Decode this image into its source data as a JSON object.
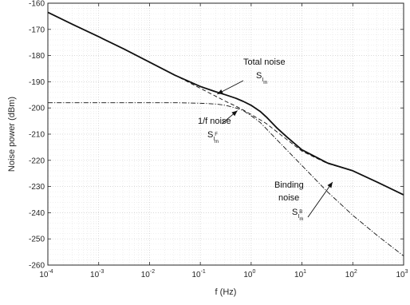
{
  "chart_data": {
    "type": "line",
    "xlabel": "f (Hz)",
    "ylabel": "Noise power (dBm)",
    "xscale": "log",
    "xlim": [
      0.0001,
      1000
    ],
    "ylim": [
      -260,
      -160
    ],
    "grid": true,
    "x_ticks": [
      {
        "base": "10",
        "exp": "-4",
        "value": 0.0001
      },
      {
        "base": "10",
        "exp": "-3",
        "value": 0.001
      },
      {
        "base": "10",
        "exp": "-2",
        "value": 0.01
      },
      {
        "base": "10",
        "exp": "-1",
        "value": 0.1
      },
      {
        "base": "10",
        "exp": "0",
        "value": 1
      },
      {
        "base": "10",
        "exp": "1",
        "value": 10
      },
      {
        "base": "10",
        "exp": "2",
        "value": 100
      },
      {
        "base": "10",
        "exp": "3",
        "value": 1000
      }
    ],
    "y_ticks": [
      "-160",
      "-170",
      "-180",
      "-190",
      "-200",
      "-210",
      "-220",
      "-230",
      "-240",
      "-250",
      "-260"
    ],
    "x": [
      0.0001,
      0.000316,
      0.001,
      0.00316,
      0.01,
      0.0316,
      0.1,
      0.2,
      0.316,
      0.5,
      0.7,
      1,
      1.5,
      2,
      3.16,
      5,
      10,
      31.6,
      100,
      316,
      1000
    ],
    "series": [
      {
        "style": "solid",
        "values": [
          -163.5,
          -168.2,
          -172.8,
          -177.5,
          -182.5,
          -187.5,
          -191.8,
          -193.8,
          -195.0,
          -196.3,
          -197.5,
          -199.0,
          -201.3,
          -203.5,
          -207.5,
          -211.0,
          -216.0,
          -221.0,
          -224.0,
          -228.5,
          -233.2
        ]
      },
      {
        "style": "dashed",
        "values": [
          -163.5,
          -168.2,
          -172.8,
          -177.5,
          -182.5,
          -187.5,
          -192.5,
          -195.5,
          -197.5,
          -199.3,
          -200.8,
          -202.5,
          -204.5,
          -206.0,
          -209.0,
          -212.0,
          -216.5,
          -221.2,
          -224.0,
          -228.5,
          -233.2
        ]
      },
      {
        "style": "dashdot",
        "values": [
          -198.0,
          -198.0,
          -198.0,
          -198.0,
          -198.0,
          -198.0,
          -198.2,
          -198.5,
          -199.0,
          -200.0,
          -201.0,
          -203.0,
          -205.5,
          -208.0,
          -212.0,
          -216.0,
          -222.0,
          -232.0,
          -241.0,
          -249.0,
          -256.5
        ]
      }
    ],
    "annotations": [
      {
        "text": "Total noise",
        "symbol": "S",
        "sub": "I",
        "subsub": "m",
        "sup": "",
        "point_x": 0.2,
        "point_y": -193.8
      },
      {
        "text": "1/f noise",
        "symbol": "S",
        "sub": "I",
        "subsub": "m",
        "sup": "F",
        "point_x": 0.5,
        "point_y": -199.8
      },
      {
        "text": "Binding",
        "text2": "noise",
        "symbol": "S",
        "sub": "I",
        "subsub": "m",
        "sup": "B",
        "point_x": 40,
        "point_y": -228.0
      }
    ]
  }
}
